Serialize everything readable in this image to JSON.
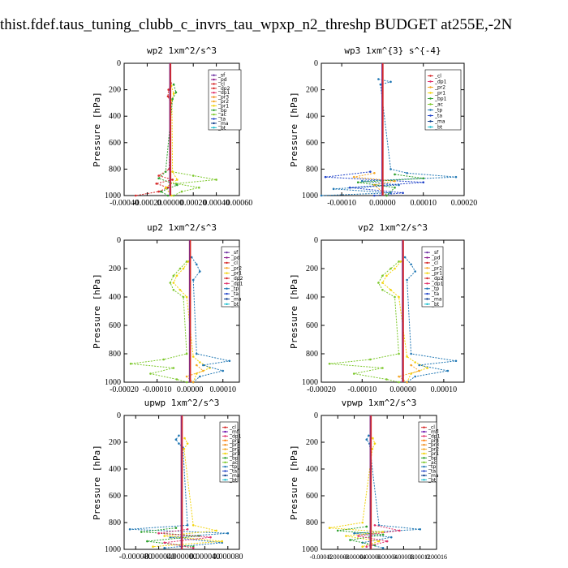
{
  "header": {
    "title": "thist.fdef.taus_tuning_clubb_c_invrs_tau_wpxp_n2_threshp  BUDGET at255E,-2N"
  },
  "colors": {
    "sf": "#6b2fa0",
    "pd": "#8c1a8c",
    "cl": "#d62728",
    "dp1": "#e0306a",
    "dp2": "#d62728",
    "pr1": "#f2d40c",
    "pr2": "#f5a623",
    "pr3": "#f08c1a",
    "pr4": "#ff7f0e",
    "bp": "#2ca02c",
    "ac": "#7cc82b",
    "tp": "#1f77b4",
    "ta": "#1e40c8",
    "ma": "#0a3a8a",
    "bt": "#17becf",
    "mfl": "#6a0dad",
    "zero_line": "#d62728"
  },
  "chart_data": [
    {
      "type": "line",
      "title": "wp2   1xm^2/s^3",
      "ylabel": "Pressure  [hPa]",
      "xlim": [
        -0.0004,
        0.0006
      ],
      "ylim": [
        1000,
        0
      ],
      "xticks": [
        "-0.00040",
        "-0.00020",
        "0.00000",
        "0.00020",
        "0.00040",
        "0.00060"
      ],
      "yticks": [
        "0",
        "200",
        "400",
        "600",
        "800",
        "1000"
      ],
      "legend": [
        "_sf",
        "_pd",
        "_cl",
        "_dp2",
        "_dp1",
        "_pr3",
        "_pr2",
        "_pr1",
        "_bp",
        "_ac",
        "_ta",
        "_ma",
        "_bt"
      ],
      "series": [
        {
          "name": "_ac",
          "key": "ac",
          "y": [
            820,
            850,
            880,
            910,
            940,
            970,
            1000
          ],
          "x": [
            2e-05,
            0.0002,
            0.0004,
            5e-05,
            0.00025,
            0.0001,
            3e-05
          ]
        },
        {
          "name": "_cl",
          "key": "cl",
          "y": [
            150,
            200,
            250,
            300,
            800,
            850,
            880,
            910,
            940,
            970,
            1000
          ],
          "x": [
            5e-06,
            -1.5e-05,
            -2e-05,
            5e-06,
            -1e-05,
            -0.0001,
            2e-05,
            -0.00012,
            -2e-05,
            -0.0001,
            -0.0003
          ]
        },
        {
          "name": "_pr1",
          "key": "pr1",
          "y": [
            170,
            230,
            280,
            820,
            880,
            940,
            1000
          ],
          "x": [
            1e-05,
            3e-05,
            1.5e-05,
            2e-05,
            6e-05,
            -4e-05,
            1e-05
          ]
        },
        {
          "name": "_bp",
          "key": "bp",
          "y": [
            160,
            220,
            270,
            820,
            870,
            920,
            970,
            1000
          ],
          "x": [
            3e-05,
            5e-05,
            2e-05,
            -4e-05,
            -0.0001,
            6e-05,
            -8e-05,
            -2e-05
          ]
        }
      ]
    },
    {
      "type": "line",
      "title": "wp3   1xm^{3} s^{-4}",
      "ylabel": "Pressure  [hPa]",
      "xlim": [
        -0.00015,
        0.0002
      ],
      "ylim": [
        1000,
        0
      ],
      "xticks": [
        "-0.00010",
        "0.00000",
        "0.00010",
        "0.00020"
      ],
      "yticks": [
        "0",
        "200",
        "400",
        "600",
        "800",
        "1000"
      ],
      "legend": [
        "_cl",
        "_dp1",
        "_pr2",
        "_pr1",
        "_bp1",
        "_ac",
        "_tp",
        "_ta",
        "_ma",
        "_bt"
      ],
      "series": [
        {
          "name": "_tp",
          "key": "tp",
          "y": [
            120,
            140,
            160,
            800,
            830,
            860,
            890,
            920,
            950,
            980,
            1000
          ],
          "x": [
            -1e-05,
            2e-05,
            -5e-06,
            2e-05,
            6e-05,
            0.00018,
            -5e-05,
            4e-05,
            -0.00012,
            2e-05,
            -0.00015
          ]
        },
        {
          "name": "_ta",
          "key": "ta",
          "y": [
            820,
            860,
            900,
            940,
            980,
            1000
          ],
          "x": [
            -3e-05,
            -0.00014,
            0.0001,
            -8e-05,
            5e-05,
            -2e-05
          ]
        },
        {
          "name": "_pr2",
          "key": "pr2",
          "y": [
            830,
            860,
            890,
            920,
            1000
          ],
          "x": [
            -2e-05,
            -7e-05,
            3e-05,
            -2e-05,
            1e-05
          ]
        },
        {
          "name": "_bp1",
          "key": "bp",
          "y": [
            840,
            870,
            900,
            940,
            1000
          ],
          "x": [
            3e-05,
            0.0001,
            -6e-05,
            3e-05,
            1e-05
          ]
        }
      ]
    },
    {
      "type": "line",
      "title": "up2   1xm^2/s^3",
      "ylabel": "Pressure  [hPa]",
      "xlim": [
        -0.0002,
        0.00015
      ],
      "ylim": [
        1000,
        0
      ],
      "xticks": [
        "-0.00020",
        "-0.00010",
        "0.00000",
        "0.00010"
      ],
      "yticks": [
        "0",
        "200",
        "400",
        "600",
        "800",
        "1000"
      ],
      "legend": [
        "_sf",
        "_pd",
        "_cl",
        "_pr2",
        "_pr1",
        "_dp2",
        "_dp1",
        "_tp",
        "_ta",
        "_ma",
        "_bt"
      ],
      "series": [
        {
          "name": "_dp1",
          "key": "ac",
          "y": [
            150,
            200,
            250,
            300,
            350,
            400,
            800,
            840,
            870,
            900,
            940,
            980,
            1000
          ],
          "x": [
            -1e-05,
            -3e-05,
            -5e-05,
            -6e-05,
            -5e-05,
            -2e-05,
            -1e-05,
            -8e-05,
            -0.00018,
            -5e-05,
            -0.00012,
            -4e-05,
            -1e-05
          ]
        },
        {
          "name": "_pr1",
          "key": "pr1",
          "y": [
            150,
            200,
            250,
            300,
            350,
            400,
            820,
            860,
            900,
            940,
            1000
          ],
          "x": [
            -5e-06,
            -2e-05,
            -4e-05,
            -5e-05,
            -3e-05,
            -1e-05,
            1e-05,
            3e-05,
            6e-05,
            2e-05,
            1e-05
          ]
        },
        {
          "name": "_tp",
          "key": "tp",
          "y": [
            120,
            170,
            220,
            280,
            800,
            850,
            880,
            920,
            960,
            1000
          ],
          "x": [
            5e-06,
            2e-05,
            3e-05,
            1e-05,
            2e-05,
            0.00012,
            4e-05,
            0.0001,
            3e-05,
            1e-05
          ]
        },
        {
          "name": "_pr2",
          "key": "pr2",
          "y": [
            880,
            920,
            960,
            1000
          ],
          "x": [
            2e-05,
            4e-05,
            -1e-05,
            1e-05
          ]
        }
      ]
    },
    {
      "type": "line",
      "title": "vp2   1xm^2/s^3",
      "ylabel": "Pressure  [hPa]",
      "xlim": [
        -0.0002,
        0.00015
      ],
      "ylim": [
        1000,
        0
      ],
      "xticks": [
        "-0.00020",
        "-0.00010",
        "0.00000",
        "0.00010"
      ],
      "yticks": [
        "0",
        "200",
        "400",
        "600",
        "800",
        "1000"
      ],
      "legend": [
        "_sf",
        "_pd",
        "_cl",
        "_pr2",
        "_pr1",
        "_dp2",
        "_dp1",
        "_tp",
        "_ta",
        "_ma",
        "_bt"
      ],
      "series": [
        {
          "name": "_dp1",
          "key": "ac",
          "y": [
            150,
            200,
            250,
            300,
            350,
            400,
            800,
            840,
            870,
            900,
            940,
            980,
            1000
          ],
          "x": [
            -1e-05,
            -3e-05,
            -5e-05,
            -6e-05,
            -5e-05,
            -2e-05,
            -1e-05,
            -8e-05,
            -0.00018,
            -5e-05,
            -0.00012,
            -4e-05,
            -1e-05
          ]
        },
        {
          "name": "_pr1",
          "key": "pr1",
          "y": [
            150,
            200,
            250,
            300,
            350,
            400,
            820,
            860,
            900,
            940,
            1000
          ],
          "x": [
            -5e-06,
            -2e-05,
            -4e-05,
            -5e-05,
            -3e-05,
            -1e-05,
            1e-05,
            3e-05,
            6e-05,
            2e-05,
            1e-05
          ]
        },
        {
          "name": "_tp",
          "key": "tp",
          "y": [
            120,
            170,
            220,
            280,
            800,
            850,
            880,
            920,
            960,
            1000
          ],
          "x": [
            5e-06,
            2e-05,
            3e-05,
            1e-05,
            2e-05,
            0.00013,
            4e-05,
            0.00011,
            3e-05,
            1e-05
          ]
        },
        {
          "name": "_pr2",
          "key": "pr2",
          "y": [
            880,
            920,
            960,
            1000
          ],
          "x": [
            2e-05,
            4e-05,
            -1e-05,
            1e-05
          ]
        }
      ]
    },
    {
      "type": "line",
      "title": "upwp   1xm^2/s^3",
      "ylabel": "Pressure  [hPa]",
      "xlim": [
        -0.0001,
        0.0001
      ],
      "ylim": [
        1000,
        0
      ],
      "xticks": [
        "-0.000080",
        "-0.000040",
        "0.000000",
        "0.000040",
        "0.000080"
      ],
      "yticks": [
        "0",
        "200",
        "400",
        "600",
        "800",
        "1000"
      ],
      "legend": [
        "_cl",
        "_mfl",
        "_dp1",
        "_pr4",
        "_pr3",
        "_pr2",
        "_pr1",
        "_bp",
        "_ac",
        "_tp",
        "_ta",
        "_ma",
        "_bt"
      ],
      "series": [
        {
          "name": "_tp",
          "key": "tp",
          "y": [
            150,
            180,
            210,
            240,
            820,
            850,
            880,
            910,
            950,
            990
          ],
          "x": [
            -5e-06,
            -1e-05,
            -5e-06,
            2e-06,
            1e-05,
            -9e-05,
            8e-05,
            -2e-05,
            7e-05,
            -3e-05
          ]
        },
        {
          "name": "_pr2",
          "key": "pr1",
          "y": [
            170,
            210,
            250,
            820,
            860,
            900,
            940,
            980
          ],
          "x": [
            5e-06,
            1e-05,
            4e-06,
            2e-05,
            6e-05,
            -3e-05,
            7e-05,
            -5e-05
          ]
        },
        {
          "name": "_bp",
          "key": "bp",
          "y": [
            840,
            870,
            900,
            940,
            980
          ],
          "x": [
            -1e-05,
            -7e-05,
            3e-05,
            -6e-05,
            2e-05
          ]
        },
        {
          "name": "_dp1",
          "key": "dp1",
          "y": [
            850,
            880,
            910,
            950,
            990
          ],
          "x": [
            1e-05,
            -4e-05,
            5e-05,
            -3e-05,
            2e-05
          ]
        }
      ]
    },
    {
      "type": "line",
      "title": "vpwp   1xm^2/s^3",
      "ylabel": "Pressure  [hPa]",
      "xlim": [
        -0.00012,
        0.00016
      ],
      "ylim": [
        1000,
        0
      ],
      "xticks": [
        "-0.00012",
        "-0.00008",
        "-0.00004",
        "0.00000",
        "0.00004",
        "0.00008",
        "0.00012",
        "0.00016"
      ],
      "yticks": [
        "0",
        "200",
        "400",
        "600",
        "800",
        "1000"
      ],
      "legend": [
        "_cl",
        "_mfl",
        "_dp1",
        "_pr4",
        "_pr3",
        "_pr2",
        "_pr1",
        "_bp",
        "_ac",
        "_tp",
        "_ta",
        "_ma",
        "_bt"
      ],
      "series": [
        {
          "name": "_tp",
          "key": "tp",
          "y": [
            150,
            180,
            210,
            820,
            850,
            880,
            910,
            950,
            990
          ],
          "x": [
            -5e-06,
            -1e-05,
            -3e-06,
            2e-05,
            0.00012,
            -4e-05,
            5e-05,
            -2e-05,
            3e-05
          ]
        },
        {
          "name": "_pr1",
          "key": "pr1",
          "y": [
            170,
            210,
            250,
            800,
            840,
            870,
            900,
            940,
            980
          ],
          "x": [
            5e-06,
            1e-05,
            4e-06,
            -2e-05,
            -0.0001,
            3e-05,
            -6e-05,
            2e-05,
            -2e-05
          ]
        },
        {
          "name": "_bp",
          "key": "bp",
          "y": [
            830,
            860,
            890,
            930,
            970
          ],
          "x": [
            -1e-05,
            -8e-05,
            3e-05,
            -5e-05,
            1e-05
          ]
        },
        {
          "name": "_dp1",
          "key": "dp1",
          "y": [
            820,
            860,
            900,
            940,
            980
          ],
          "x": [
            1e-05,
            7e-05,
            -3e-05,
            4e-05,
            -1e-05
          ]
        }
      ]
    }
  ]
}
